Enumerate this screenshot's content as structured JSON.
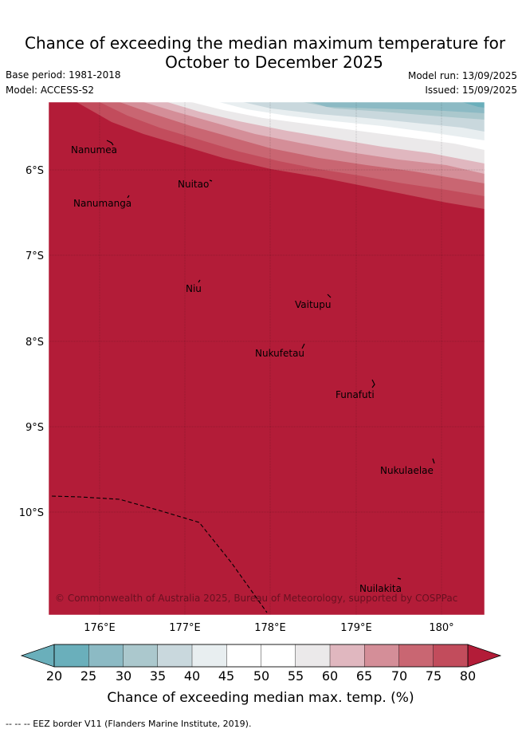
{
  "title": {
    "line1": "Chance of exceeding the median maximum temperature for",
    "line2": "October to December 2025"
  },
  "meta": {
    "base_period": "Base period: 1981-2018",
    "model": "Model: ACCESS-S2",
    "model_run": "Model run: 13/09/2025",
    "issued": "Issued: 15/09/2025"
  },
  "map": {
    "lat_ticks": [
      "6°S",
      "7°S",
      "8°S",
      "9°S",
      "10°S"
    ],
    "lon_ticks": [
      "176°E",
      "177°E",
      "178°E",
      "179°E",
      "180°"
    ],
    "places": [
      "Nanumea",
      "Nuitao",
      "Nanumanga",
      "Niu",
      "Vaitupu",
      "Nukufetau",
      "Funafuti",
      "Nukulaelae",
      "Nuilakita"
    ],
    "copyright": "© Commonwealth of Australia 2025, Bureau of Meteorology, supported by COSPPac",
    "colors": {
      "dominant": "#b31c38",
      "levels": [
        "#6aafbb",
        "#8cbac4",
        "#abc8cd",
        "#c9d8dd",
        "#e8eef0",
        "#ffffff",
        "#ffffff",
        "#ebe9ea",
        "#e0b7bf",
        "#d48e98",
        "#c96672",
        "#c24c5c",
        "#b31c38"
      ]
    }
  },
  "colorbar": {
    "ticks": [
      "20",
      "25",
      "30",
      "35",
      "40",
      "45",
      "50",
      "55",
      "60",
      "65",
      "70",
      "75",
      "80"
    ],
    "label": "Chance of exceeding median max. temp. (%)"
  },
  "footer": "-- -- -- EEZ border V11 (Flanders Marine Institute, 2019)."
}
